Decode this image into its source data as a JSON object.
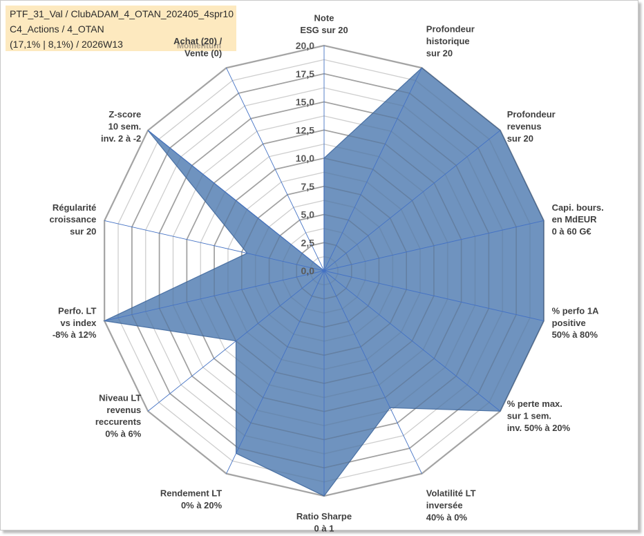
{
  "header": {
    "line1": "PTF_31_Val / ClubADAM_4_OTAN_202405_4spr10",
    "line2": "C4_Actions / 4_OTAN",
    "line3": "(17,1% | 8,1%) / 2026W13",
    "momentum": "Momentum"
  },
  "chart_data": {
    "type": "radar",
    "rmin": 0,
    "rmax": 20,
    "ticks": [
      "0,0",
      "2,5",
      "5,0",
      "7,5",
      "10,0",
      "12,5",
      "15,0",
      "17,5",
      "20,0"
    ],
    "series": [
      {
        "name": "PTF_31_Val",
        "color": "#6f93bf",
        "stroke": "#4e74a6"
      }
    ],
    "axes": [
      {
        "label": [
          "Note",
          "ESG sur 20"
        ],
        "value": 10
      },
      {
        "label": [
          "Profondeur",
          "historique",
          "sur 20"
        ],
        "value": 20
      },
      {
        "label": [
          "Profondeur",
          "revenus",
          "sur 20"
        ],
        "value": 20
      },
      {
        "label": [
          "Capi. bours.",
          "en MdEUR",
          "0 à 60 G€"
        ],
        "value": 20
      },
      {
        "label": [
          "% perfo 1A",
          "positive",
          "50% à 80%"
        ],
        "value": 20
      },
      {
        "label": [
          "% perte max.",
          "sur 1 sem.",
          "inv. 50% à 20%"
        ],
        "value": 20
      },
      {
        "label": [
          "Volatilité LT",
          "inversée",
          "40% à 0%"
        ],
        "value": 13.5
      },
      {
        "label": [
          "Ratio Sharpe",
          "0 à 1"
        ],
        "value": 20
      },
      {
        "label": [
          "Rendement LT",
          "0% à 20%"
        ],
        "value": 18
      },
      {
        "label": [
          "Niveau LT",
          "revenus",
          "reccurents",
          "0% à 6%"
        ],
        "value": 10
      },
      {
        "label": [
          "Perfo. LT",
          "vs index",
          "-8% à 12%"
        ],
        "value": 20
      },
      {
        "label": [
          "Régularité",
          "croissance",
          "sur 20"
        ],
        "value": 7
      },
      {
        "label": [
          "Z-score",
          "10 sem.",
          "inv. 2 à -2"
        ],
        "value": 20
      },
      {
        "label": [
          "Achat (20) /",
          "Vente (0)"
        ],
        "value": 0
      }
    ]
  }
}
